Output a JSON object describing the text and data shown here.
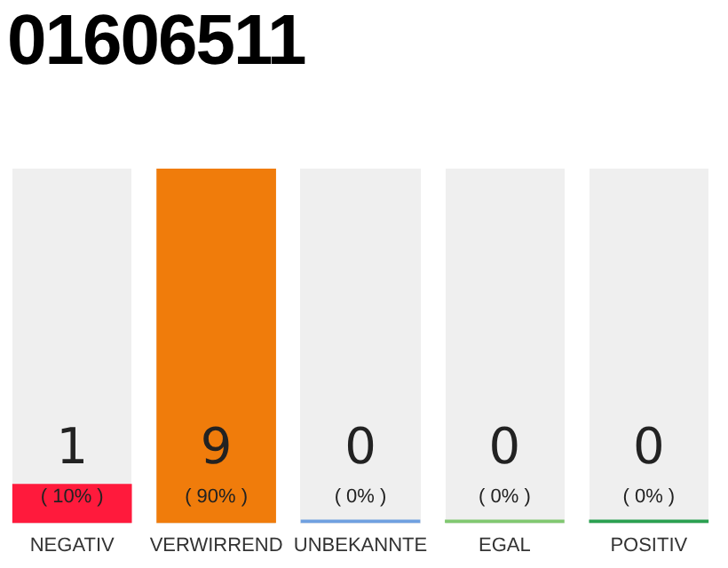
{
  "chart_data": {
    "type": "bar",
    "title": "01606511",
    "categories": [
      "NEGATIV",
      "VERWIRREND",
      "UNBEKANNTE",
      "EGAL",
      "POSITIV"
    ],
    "values": [
      1,
      9,
      0,
      0,
      0
    ],
    "colors": [
      "#ff1a3c",
      "#f07c0b",
      "#6fa0e0",
      "#80c870",
      "#2aa050"
    ],
    "value_labels": [
      "1 ( 10% )",
      "9 ( 90% )",
      "0 ( 0% )",
      "0 ( 0% )",
      "0 ( 0% )"
    ],
    "ylim": [
      0,
      9
    ],
    "grid": false,
    "legend": false,
    "tick_labels": "x"
  }
}
